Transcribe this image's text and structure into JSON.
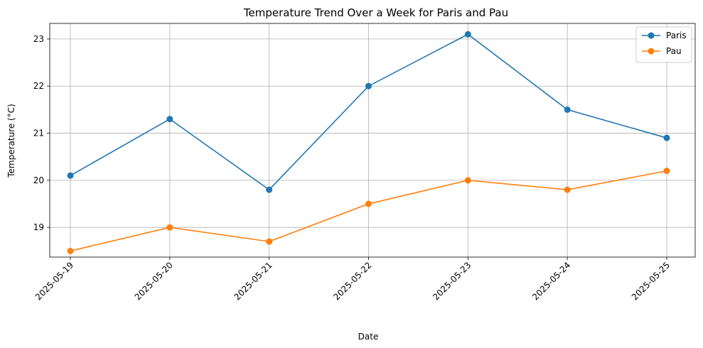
{
  "chart_data": {
    "type": "line",
    "title": "Temperature Trend Over a Week for Paris and Pau",
    "xlabel": "Date",
    "ylabel": "Temperature (°C)",
    "categories": [
      "2025-05-19",
      "2025-05-20",
      "2025-05-21",
      "2025-05-22",
      "2025-05-23",
      "2025-05-24",
      "2025-05-25"
    ],
    "series": [
      {
        "name": "Paris",
        "color": "#1f77b4",
        "values": [
          20.1,
          21.3,
          19.8,
          22.0,
          23.1,
          21.5,
          20.9
        ]
      },
      {
        "name": "Pau",
        "color": "#ff7f0e",
        "values": [
          18.5,
          19.0,
          18.7,
          19.5,
          20.0,
          19.8,
          20.2
        ]
      }
    ],
    "yticks": [
      "19",
      "20",
      "21",
      "22",
      "23"
    ],
    "ylim": [
      18.37,
      23.33
    ],
    "grid": true,
    "legend_position": "top-right",
    "markers": "circle"
  }
}
